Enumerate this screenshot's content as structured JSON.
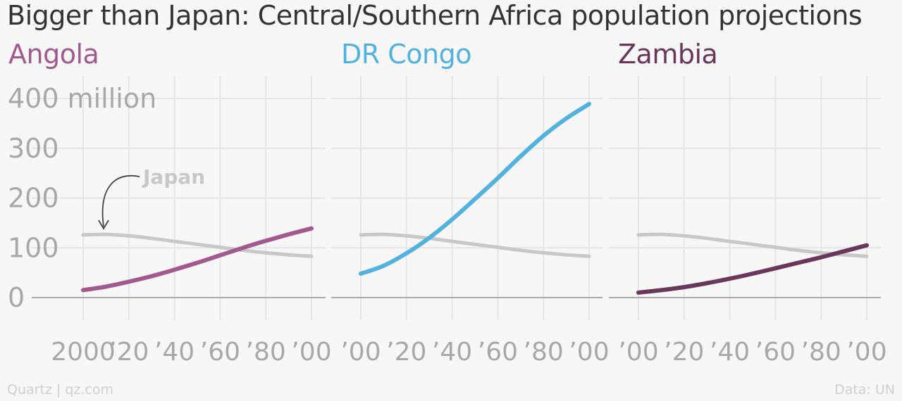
{
  "title": "Bigger than Japan: Central/Southern Africa population projections",
  "footer": {
    "source": "Quartz | qz.com",
    "credit": "Data: UN"
  },
  "colors": {
    "angola": "#a3588e",
    "drc": "#51b2e0",
    "zambia": "#6a3659",
    "japan": "#c8c8c8",
    "axis_text": "#a8a8a8",
    "grid": "#e6e6e6",
    "baseline": "#aaaaaa"
  },
  "chart_data": [
    {
      "type": "line",
      "panel_title": "Angola",
      "x": [
        2000,
        2010,
        2020,
        2030,
        2040,
        2050,
        2060,
        2070,
        2080,
        2090,
        2100
      ],
      "series": [
        {
          "key": "angola",
          "values": [
            15,
            22,
            32,
            43,
            56,
            70,
            85,
            100,
            114,
            127,
            139
          ]
        },
        {
          "key": "japan",
          "name": "Japan",
          "values": [
            126,
            127,
            124,
            119,
            113,
            107,
            101,
            95,
            90,
            86,
            83
          ]
        }
      ],
      "ylim": [
        0,
        400
      ],
      "yticks": [
        0,
        100,
        200,
        300,
        400
      ],
      "ytick_labels": [
        "0",
        "100",
        "200",
        "300",
        "400 million"
      ],
      "xtick_labels": [
        "2000",
        "’20",
        "’40",
        "’60",
        "’80",
        "’00"
      ],
      "annotation": "Japan"
    },
    {
      "type": "line",
      "panel_title": "DR Congo",
      "x": [
        2000,
        2010,
        2020,
        2030,
        2040,
        2050,
        2060,
        2070,
        2080,
        2090,
        2100
      ],
      "series": [
        {
          "key": "drc",
          "values": [
            48,
            64,
            89,
            120,
            157,
            198,
            240,
            284,
            325,
            360,
            389
          ]
        },
        {
          "key": "japan",
          "name": "Japan",
          "values": [
            126,
            127,
            124,
            119,
            113,
            107,
            101,
            95,
            90,
            86,
            83
          ]
        }
      ],
      "ylim": [
        0,
        400
      ],
      "xtick_labels": [
        "’00",
        "’20",
        "’40",
        "’60",
        "’80",
        "’00"
      ]
    },
    {
      "type": "line",
      "panel_title": "Zambia",
      "x": [
        2000,
        2010,
        2020,
        2030,
        2040,
        2050,
        2060,
        2070,
        2080,
        2090,
        2100
      ],
      "series": [
        {
          "key": "zambia",
          "values": [
            10,
            15,
            21,
            29,
            38,
            48,
            59,
            70,
            81,
            93,
            105
          ]
        },
        {
          "key": "japan",
          "name": "Japan",
          "values": [
            126,
            127,
            124,
            119,
            113,
            107,
            101,
            95,
            90,
            86,
            83
          ]
        }
      ],
      "ylim": [
        0,
        400
      ],
      "xtick_labels": [
        "’00",
        "’20",
        "’40",
        "’60",
        "’80",
        "’00"
      ]
    }
  ]
}
